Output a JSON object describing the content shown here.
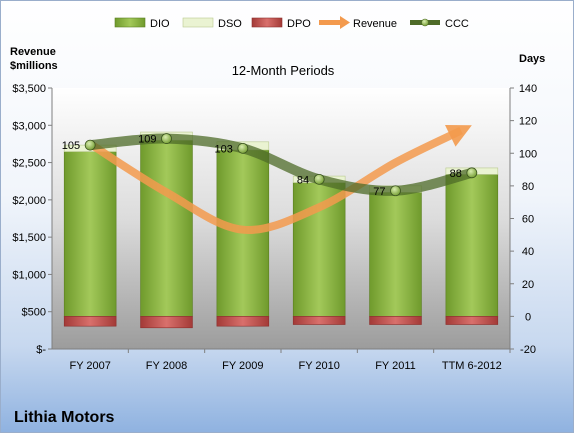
{
  "chart_data": {
    "type": "bar",
    "title": "12-Month Periods",
    "company": "Lithia Motors",
    "left_axis_label": [
      "Revenue",
      "$millions"
    ],
    "right_axis_label": "Days",
    "categories": [
      "FY 2007",
      "FY 2008",
      "FY 2009",
      "FY 2010",
      "FY 2011",
      "TTM 6-2012"
    ],
    "left_ticks": [
      "$-",
      "$500",
      "$1,000",
      "$1,500",
      "$2,000",
      "$2,500",
      "$3,000",
      "$3,500"
    ],
    "right_ticks": [
      "-20",
      "0",
      "20",
      "40",
      "60",
      "80",
      "100",
      "120",
      "140"
    ],
    "ylim_left": [
      0,
      3500
    ],
    "ylim_right": [
      -20,
      140
    ],
    "legend": [
      "DIO",
      "DSO",
      "DPO",
      "Revenue",
      "CCC"
    ],
    "legend_position": "top",
    "colors": {
      "dio": "#8db43d",
      "dso": "#eaf3d2",
      "dpo": "#c0504d",
      "revenue": "#f39a4d",
      "ccc": "#4e6b28"
    },
    "series": [
      {
        "name": "DIO",
        "axis": "right",
        "values": [
          101,
          108,
          102,
          82,
          76,
          87
        ]
      },
      {
        "name": "DSO",
        "axis": "right",
        "values": [
          4,
          5,
          5,
          4,
          4,
          4
        ]
      },
      {
        "name": "DPO",
        "axis": "right",
        "values": [
          -6,
          -7,
          -6,
          -5,
          -5,
          -5
        ]
      },
      {
        "name": "Revenue",
        "axis": "left",
        "values": [
          2750,
          2100,
          1600,
          1900,
          2500,
          3000
        ]
      },
      {
        "name": "CCC",
        "axis": "right",
        "values": [
          105,
          109,
          103,
          84,
          77,
          88
        ]
      }
    ],
    "ccc_labels": [
      "105",
      "109",
      "103",
      "84",
      "77",
      "88"
    ]
  }
}
